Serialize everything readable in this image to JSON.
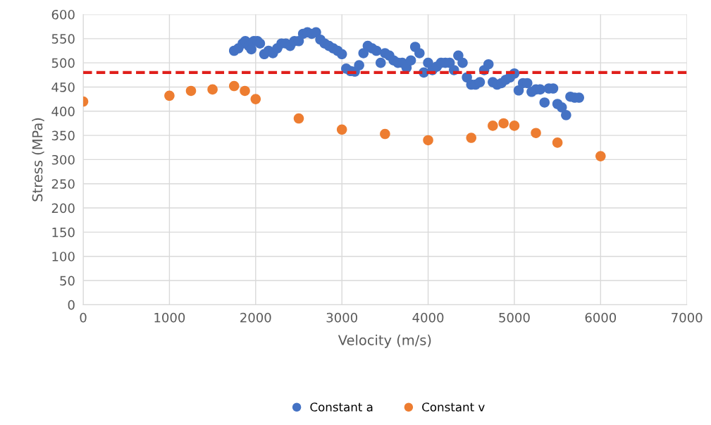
{
  "chart_data": {
    "type": "scatter",
    "xlabel": "Velocity (m/s)",
    "ylabel": "Stress (MPa)",
    "xlim": [
      0,
      7000
    ],
    "xticks": [
      0,
      1000,
      2000,
      3000,
      4000,
      5000,
      6000,
      7000
    ],
    "ylim": [
      0,
      600
    ],
    "yticks": [
      0,
      50,
      100,
      150,
      200,
      250,
      300,
      350,
      400,
      450,
      500,
      550,
      600
    ],
    "grid": true,
    "legend": "bottom",
    "marker": "circle",
    "series": [
      {
        "name": "Constant a",
        "color": "#4472c4",
        "x": [
          1750,
          1800,
          1850,
          1880,
          1920,
          1950,
          1980,
          2020,
          2050,
          2100,
          2150,
          2200,
          2250,
          2300,
          2350,
          2400,
          2450,
          2500,
          2550,
          2600,
          2650,
          2700,
          2750,
          2800,
          2850,
          2900,
          2950,
          3000,
          3050,
          3100,
          3150,
          3200,
          3250,
          3300,
          3350,
          3400,
          3450,
          3500,
          3550,
          3600,
          3650,
          3700,
          3750,
          3800,
          3850,
          3900,
          3950,
          4000,
          4050,
          4100,
          4150,
          4200,
          4250,
          4300,
          4350,
          4400,
          4450,
          4500,
          4550,
          4600,
          4650,
          4700,
          4750,
          4800,
          4850,
          4900,
          4950,
          5000,
          5050,
          5100,
          5150,
          5200,
          5250,
          5300,
          5350,
          5400,
          5450,
          5500,
          5550,
          5600,
          5650,
          5700,
          5750
        ],
        "values": [
          525,
          530,
          540,
          545,
          535,
          528,
          545,
          545,
          540,
          518,
          525,
          520,
          530,
          540,
          540,
          535,
          545,
          545,
          560,
          563,
          560,
          563,
          548,
          540,
          535,
          530,
          525,
          518,
          488,
          483,
          482,
          495,
          520,
          535,
          530,
          525,
          500,
          520,
          515,
          505,
          500,
          500,
          490,
          505,
          533,
          520,
          480,
          500,
          485,
          492,
          500,
          500,
          500,
          485,
          515,
          500,
          470,
          455,
          455,
          460,
          485,
          497,
          460,
          455,
          458,
          465,
          470,
          478,
          443,
          458,
          458,
          440,
          445,
          445,
          418,
          447,
          447,
          415,
          408,
          392,
          430,
          428,
          428
        ]
      },
      {
        "name": "Constant v",
        "color": "#ed7d31",
        "x": [
          0,
          1000,
          1250,
          1500,
          1750,
          1875,
          2000,
          2500,
          3000,
          3500,
          4000,
          4500,
          4750,
          4875,
          5000,
          5250,
          5500,
          6000
        ],
        "values": [
          420,
          432,
          442,
          445,
          452,
          442,
          425,
          385,
          362,
          353,
          340,
          345,
          370,
          375,
          370,
          355,
          335,
          307
        ]
      }
    ],
    "ref_lines": [
      {
        "axis": "y",
        "value": 480,
        "color": "#e0201c",
        "line_style": "dashed"
      }
    ]
  }
}
